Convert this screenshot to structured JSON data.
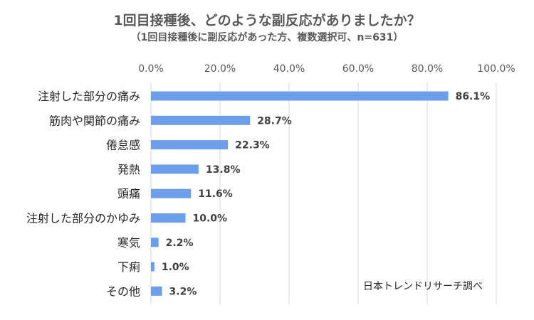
{
  "chart_data": {
    "type": "bar",
    "orientation": "horizontal",
    "title": "1回目接種後、どのような副反応がありましたか？",
    "subtitle": "（1回目接種後に副反応があった方、複数選択可、n=631）",
    "categories": [
      "注射した部分の痛み",
      "筋肉や関節の痛み",
      "倦怠感",
      "発熱",
      "頭痛",
      "注射した部分のかゆみ",
      "寒気",
      "下痢",
      "その他"
    ],
    "values": [
      86.1,
      28.7,
      22.3,
      13.8,
      11.6,
      10.0,
      2.2,
      1.0,
      3.2
    ],
    "value_labels": [
      "86.1%",
      "28.7%",
      "22.3%",
      "13.8%",
      "11.6%",
      "10.0%",
      "2.2%",
      "1.0%",
      "3.2%"
    ],
    "xlim": [
      0,
      100
    ],
    "x_ticks": [
      "0.0%",
      "20.0%",
      "40.0%",
      "60.0%",
      "80.0%",
      "100.0%"
    ],
    "x_tick_values": [
      0,
      20,
      40,
      60,
      80,
      100
    ],
    "grid": true,
    "bar_color": "#6d9eeb",
    "source_note": "日本トレンドリサーチ調べ"
  }
}
